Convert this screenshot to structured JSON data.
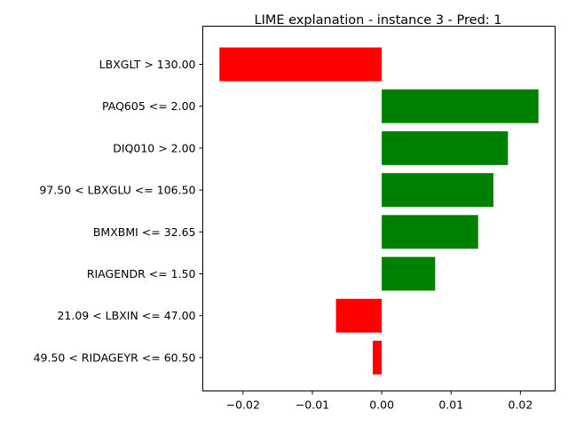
{
  "chart_data": {
    "type": "bar",
    "orientation": "horizontal",
    "title": "LIME explanation - instance 3 - Pred: 1",
    "xlabel": "",
    "ylabel": "",
    "categories": [
      "LBXGLT > 130.00",
      "PAQ605 <= 2.00",
      "DIQ010 > 2.00",
      "97.50 < LBXGLU <= 106.50",
      "BMXBMI <= 32.65",
      "RIAGENDR <= 1.50",
      "21.09 < LBXIN <= 47.00",
      "49.50 < RIDAGEYR <= 60.50"
    ],
    "values": [
      -0.0234,
      0.0226,
      0.0182,
      0.0161,
      0.0139,
      0.0077,
      -0.0066,
      -0.0013
    ],
    "xlim": [
      -0.0258,
      0.025
    ],
    "xticks": [
      -0.02,
      -0.01,
      0.0,
      0.01,
      0.02
    ],
    "xtick_labels": [
      "−0.02",
      "−0.01",
      "0.00",
      "0.01",
      "0.02"
    ],
    "grid": false,
    "colors": {
      "positive": "#008000",
      "negative": "#ff0000"
    }
  }
}
